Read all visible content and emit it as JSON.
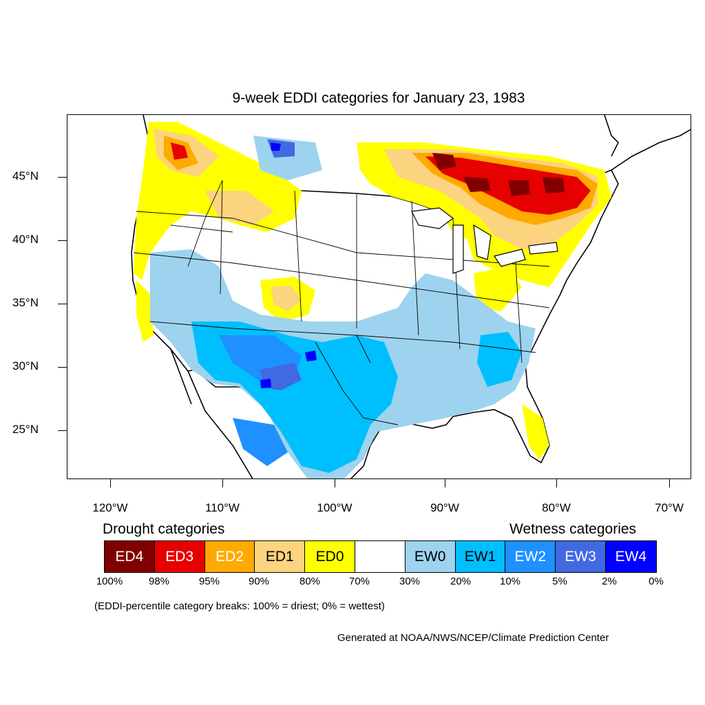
{
  "title": "9-week EDDI categories for January 23, 1983",
  "map": {
    "lat_labels": [
      "45°N",
      "40°N",
      "35°N",
      "30°N",
      "25°N"
    ],
    "lon_labels": [
      "120°W",
      "110°W",
      "100°W",
      "90°W",
      "80°W",
      "70°W"
    ],
    "colors": {
      "ED4": "#800000",
      "ED3": "#e60000",
      "ED2": "#ffaa00",
      "ED1": "#fcd37f",
      "ED0": "#ffff00",
      "none": "#ffffff",
      "EW0": "#9dd3ee",
      "EW1": "#00bfff",
      "EW2": "#1e90ff",
      "EW3": "#4169e1",
      "EW4": "#0000ff"
    },
    "land_outline": "#000000",
    "water": "#ffffff"
  },
  "legend": {
    "drought_heading": "Drought categories",
    "wetness_heading": "Wetness categories",
    "boxes": [
      {
        "label": "ED4",
        "color": "#800000",
        "text_color": "#ffffff"
      },
      {
        "label": "ED3",
        "color": "#e60000",
        "text_color": "#ffffff"
      },
      {
        "label": "ED2",
        "color": "#ffaa00",
        "text_color": "#ffffff"
      },
      {
        "label": "ED1",
        "color": "#fcd37f",
        "text_color": "#000000"
      },
      {
        "label": "ED0",
        "color": "#ffff00",
        "text_color": "#000000"
      },
      {
        "label": "",
        "color": "#ffffff",
        "text_color": "#000000"
      },
      {
        "label": "EW0",
        "color": "#9dd3ee",
        "text_color": "#000000"
      },
      {
        "label": "EW1",
        "color": "#00bfff",
        "text_color": "#000000"
      },
      {
        "label": "EW2",
        "color": "#1e90ff",
        "text_color": "#ffffff"
      },
      {
        "label": "EW3",
        "color": "#4169e1",
        "text_color": "#ffffff"
      },
      {
        "label": "EW4",
        "color": "#0000ff",
        "text_color": "#ffffff"
      }
    ],
    "breaks": [
      "100%",
      "98%",
      "95%",
      "90%",
      "80%",
      "70%",
      "30%",
      "20%",
      "10%",
      "5%",
      "2%",
      "0%"
    ],
    "note": "(EDDI-percentile category breaks: 100% = driest; 0% = wettest)"
  },
  "credit": "Generated at NOAA/NWS/NCEP/Climate Prediction Center"
}
